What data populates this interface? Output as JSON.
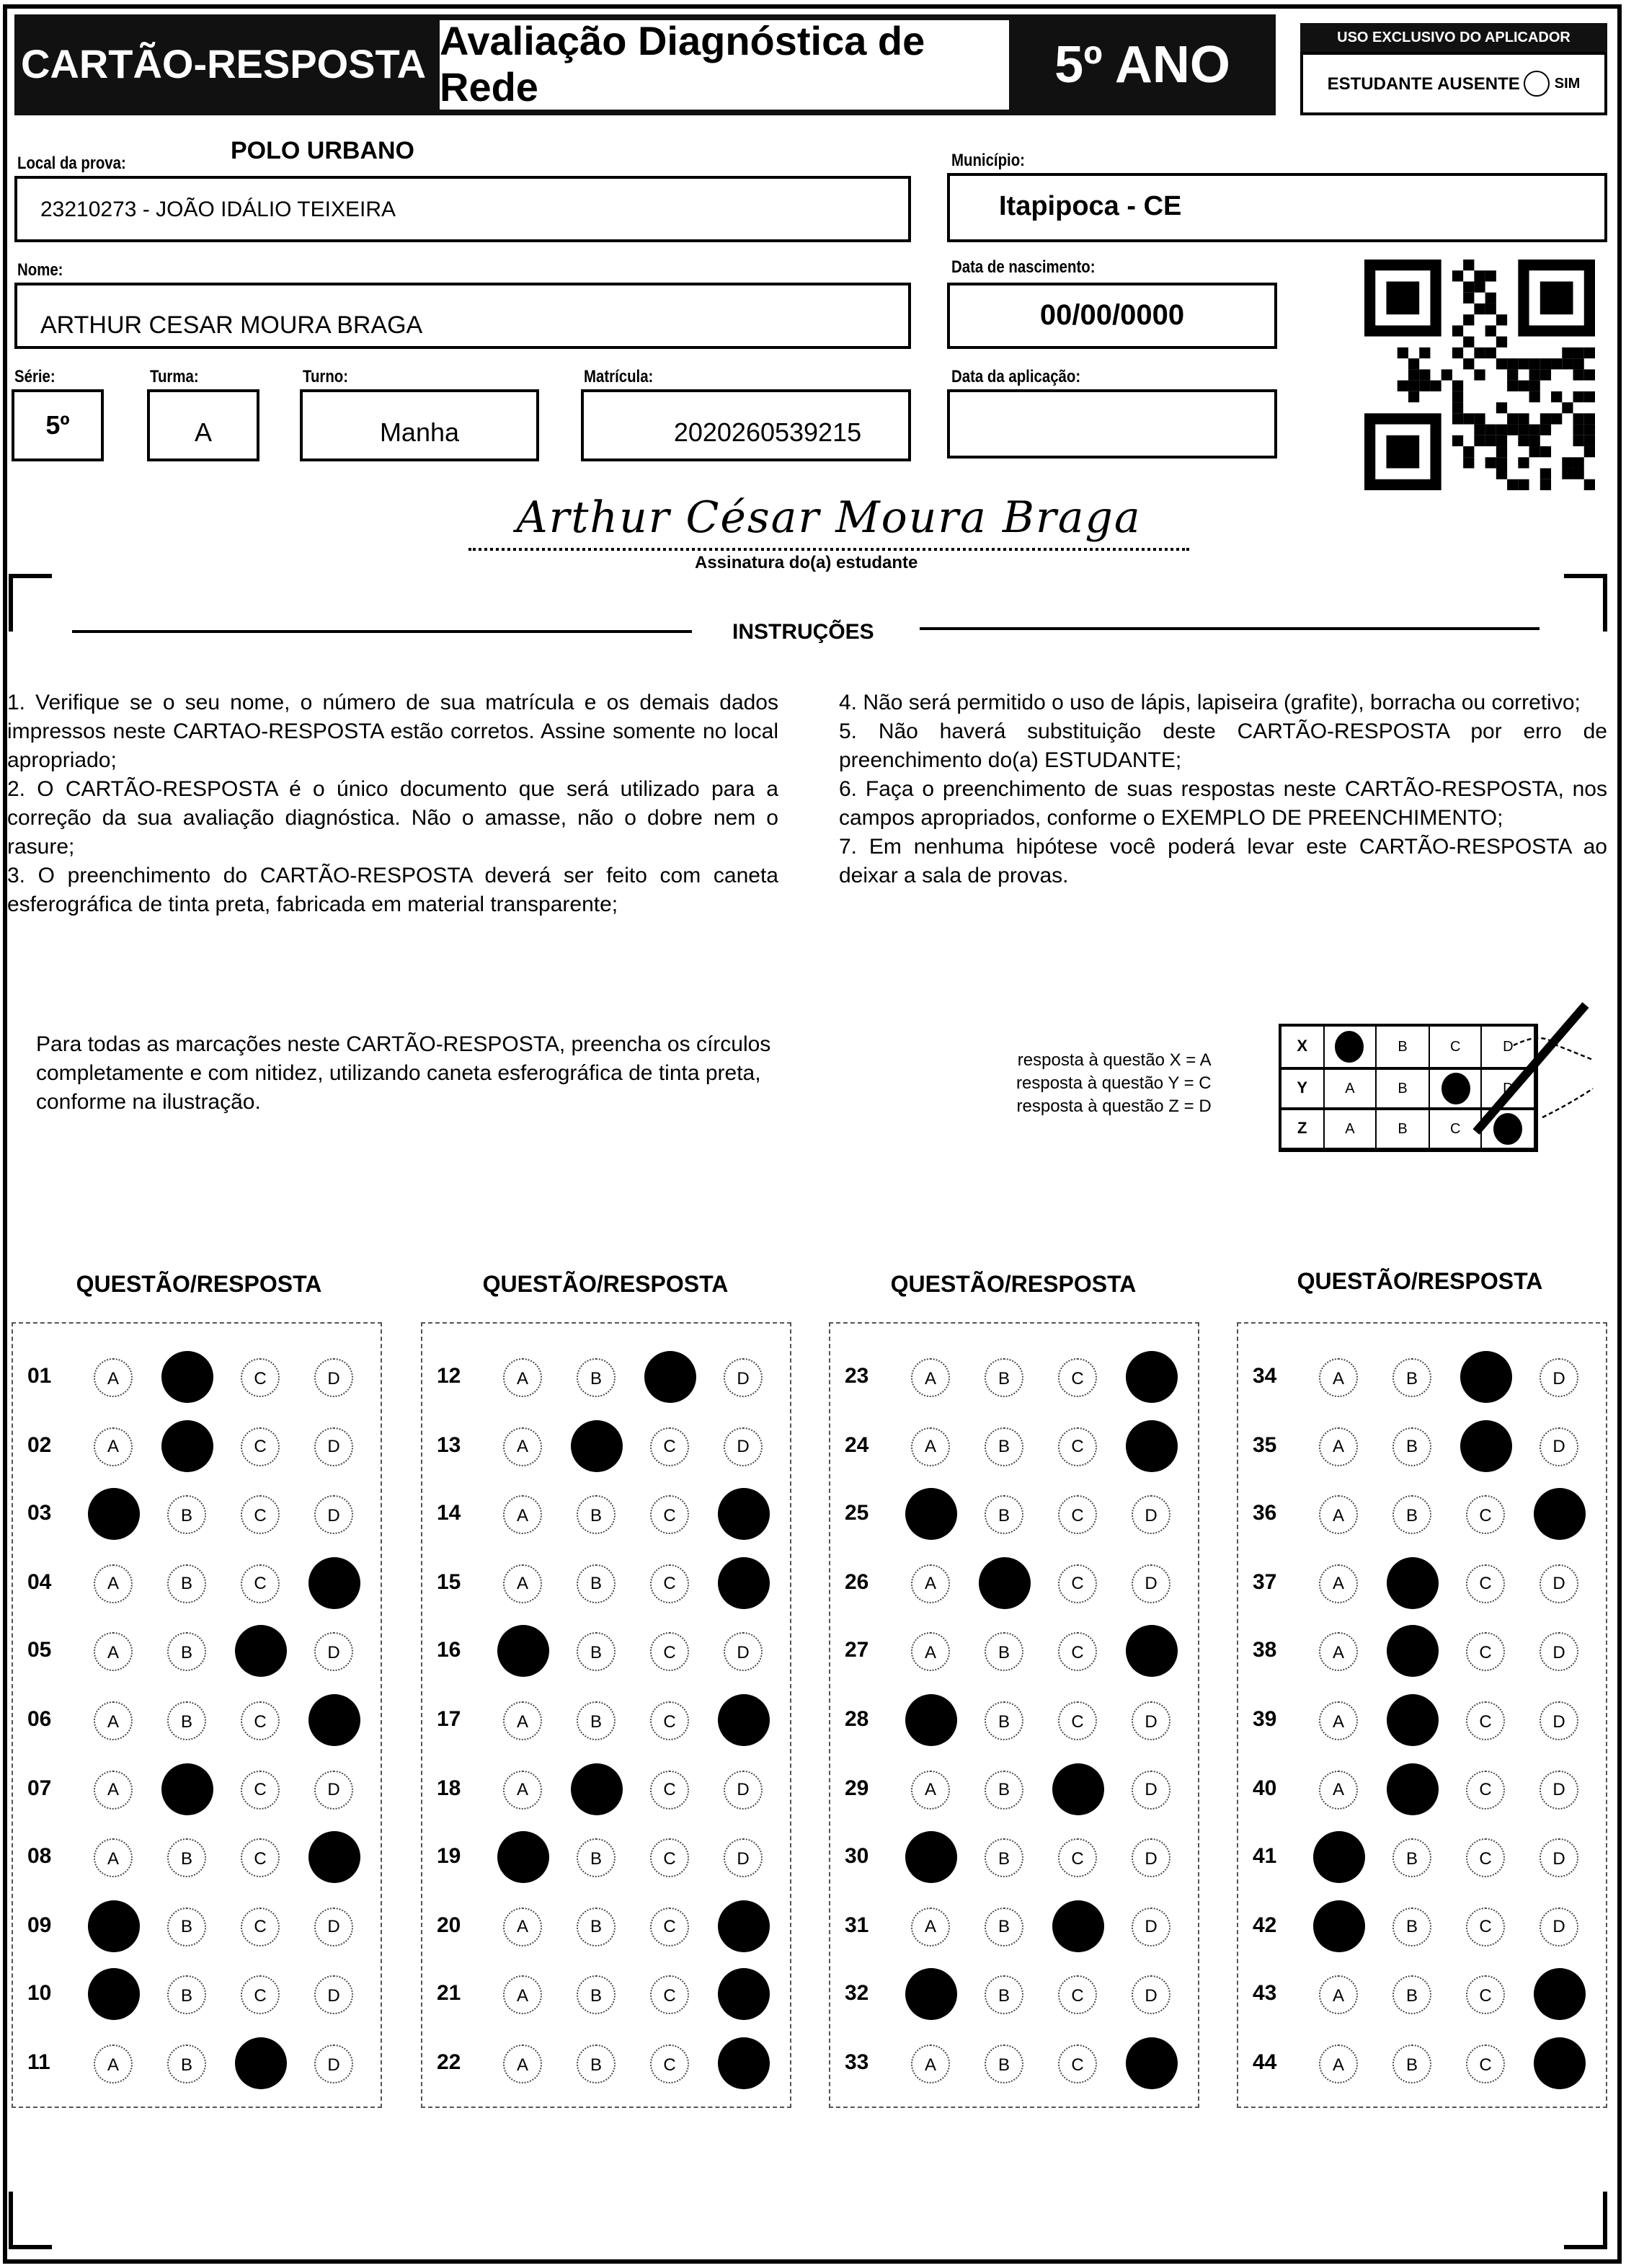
{
  "header": {
    "title": "CARTÃO-RESPOSTA",
    "subtitle": "Avaliação Diagnóstica de Rede",
    "grade": "5º ANO",
    "applicator_label": "USO EXCLUSIVO DO APLICADOR",
    "absent_label": "ESTUDANTE AUSENTE",
    "absent_option": "SIM"
  },
  "fields": {
    "local_label": "Local da prova:",
    "local_value": "POLO URBANO",
    "school": "23210273 - JOÃO IDÁLIO TEIXEIRA",
    "municipio_label": "Município:",
    "municipio": "Itapipoca - CE",
    "nome_label": "Nome:",
    "nome": "ARTHUR CESAR MOURA BRAGA",
    "nasc_label": "Data de nascimento:",
    "nasc": "00/00/0000",
    "serie_label": "Série:",
    "serie": "5º",
    "turma_label": "Turma:",
    "turma": "A",
    "turno_label": "Turno:",
    "turno": "Manha",
    "matricula_label": "Matrícula:",
    "matricula": "2020260539215",
    "aplicacao_label": "Data da aplicação:",
    "aplicacao": ""
  },
  "signature": {
    "text": "Arthur César Moura Braga",
    "caption": "Assinatura do(a) estudante"
  },
  "instructions": {
    "title": "INSTRUÇÕES",
    "left": [
      "1. Verifique se o seu nome, o número de sua matrícula e os demais dados impressos neste CARTAO-RESPOSTA estão corretos. Assine somente no local apropriado;",
      "2. O CARTÃO-RESPOSTA é o único documento que será utilizado para a correção da sua avaliação diagnóstica. Não o amasse, não o dobre nem o rasure;",
      "3. O preenchimento do CARTÃO-RESPOSTA deverá ser feito com caneta esferográfica de tinta preta, fabricada em material transparente;"
    ],
    "right": [
      "4. Não será permitido o uso de lápis, lapiseira (grafite), borracha ou corretivo;",
      "5. Não haverá substituição deste CARTÃO-RESPOSTA por erro de preenchimento do(a) ESTUDANTE;",
      "6. Faça o preenchimento de suas respostas neste CARTÃO-RESPOSTA, nos campos apropriados, conforme o EXEMPLO DE PREENCHIMENTO;",
      "7. Em nenhuma hipótese você poderá levar este CARTÃO-RESPOSTA ao deixar a sala de provas."
    ],
    "fill_note": "Para todas as marcações neste CARTÃO-RESPOSTA, preencha os círculos completamente e com nitidez, utilizando caneta esferográfica de tinta preta, conforme na ilustração."
  },
  "example": {
    "lines": [
      "resposta à questão X = A",
      "resposta à questão Y = C",
      "resposta à questão Z = D"
    ],
    "rows": [
      {
        "q": "X",
        "filled": "A"
      },
      {
        "q": "Y",
        "filled": "C"
      },
      {
        "q": "Z",
        "filled": "D"
      }
    ]
  },
  "options": [
    "A",
    "B",
    "C",
    "D"
  ],
  "column_header": "QUESTÃO/RESPOSTA",
  "answers": [
    [
      "01",
      "B"
    ],
    [
      "02",
      "B"
    ],
    [
      "03",
      "A"
    ],
    [
      "04",
      "D"
    ],
    [
      "05",
      "C"
    ],
    [
      "06",
      "D"
    ],
    [
      "07",
      "B"
    ],
    [
      "08",
      "D"
    ],
    [
      "09",
      "A"
    ],
    [
      "10",
      "A"
    ],
    [
      "11",
      "C"
    ],
    [
      "12",
      "C"
    ],
    [
      "13",
      "B"
    ],
    [
      "14",
      "D"
    ],
    [
      "15",
      "D"
    ],
    [
      "16",
      "A"
    ],
    [
      "17",
      "D"
    ],
    [
      "18",
      "B"
    ],
    [
      "19",
      "A"
    ],
    [
      "20",
      "D"
    ],
    [
      "21",
      "D"
    ],
    [
      "22",
      "D"
    ],
    [
      "23",
      "D"
    ],
    [
      "24",
      "D"
    ],
    [
      "25",
      "A"
    ],
    [
      "26",
      "B"
    ],
    [
      "27",
      "D"
    ],
    [
      "28",
      "A"
    ],
    [
      "29",
      "C"
    ],
    [
      "30",
      "A"
    ],
    [
      "31",
      "C"
    ],
    [
      "32",
      "A"
    ],
    [
      "33",
      "D"
    ],
    [
      "34",
      "C"
    ],
    [
      "35",
      "C"
    ],
    [
      "36",
      "D"
    ],
    [
      "37",
      "B"
    ],
    [
      "38",
      "B"
    ],
    [
      "39",
      "B"
    ],
    [
      "40",
      "B"
    ],
    [
      "41",
      "A"
    ],
    [
      "42",
      "A"
    ],
    [
      "43",
      "D"
    ],
    [
      "44",
      "D"
    ]
  ]
}
